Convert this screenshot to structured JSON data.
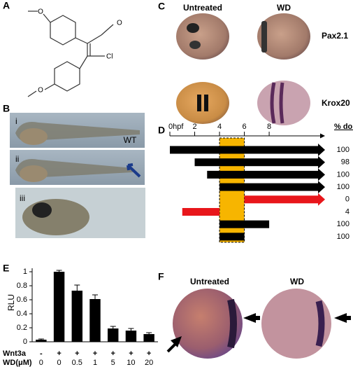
{
  "panels": {
    "A": {
      "label": "A",
      "atoms": [
        "O",
        "O",
        "Cl",
        "O"
      ]
    },
    "B": {
      "label": "B",
      "rows": [
        "i",
        "ii",
        "iii"
      ],
      "wt": "WT"
    },
    "C": {
      "label": "C",
      "columns": [
        "Untreated",
        "WD"
      ],
      "rows": [
        "Pax2.1",
        "Krox20"
      ]
    },
    "D": {
      "label": "D"
    },
    "E": {
      "label": "E"
    },
    "F": {
      "label": "F",
      "columns": [
        "Untreated",
        "WD"
      ]
    }
  },
  "timeline": {
    "xlim": [
      0,
      12.5
    ],
    "xticks": [
      {
        "value": 0,
        "label": "0hpf"
      },
      2,
      4,
      6,
      8
    ],
    "header": "% dors",
    "highlight": [
      4,
      6
    ],
    "highlight_color": "#f7b500",
    "rows": [
      {
        "start": 0,
        "end": 12.5,
        "arrow": true,
        "color": "#000000",
        "value": 100
      },
      {
        "start": 2,
        "end": 12.5,
        "arrow": true,
        "color": "#000000",
        "value": 98
      },
      {
        "start": 3,
        "end": 12.5,
        "arrow": true,
        "color": "#000000",
        "value": 100
      },
      {
        "start": 4,
        "end": 12.5,
        "arrow": true,
        "color": "#000000",
        "value": 100
      },
      {
        "start": 6,
        "end": 12.5,
        "arrow": true,
        "color": "#e8161b",
        "value": 0
      },
      {
        "start": 1,
        "end": 4,
        "arrow": false,
        "color": "#e8161b",
        "value": 4
      },
      {
        "start": 4,
        "end": 8,
        "arrow": false,
        "color": "#000000",
        "value": 100
      },
      {
        "start": 4,
        "end": 6,
        "arrow": false,
        "color": "#000000",
        "value": 100
      }
    ]
  },
  "chart_data": {
    "type": "bar",
    "y_label": "RLU",
    "category_rows": [
      {
        "label": "Wnt3a",
        "values": [
          "-",
          "+",
          "+",
          "+",
          "+",
          "+",
          "+"
        ]
      },
      {
        "label": "WD(μM)",
        "values": [
          "0",
          "0",
          "0.5",
          "1",
          "5",
          "10",
          "20"
        ]
      }
    ],
    "values": [
      0.03,
      1.0,
      0.73,
      0.61,
      0.19,
      0.16,
      0.11
    ],
    "errors": [
      0.01,
      0.02,
      0.08,
      0.06,
      0.03,
      0.03,
      0.02
    ],
    "color": "#000000",
    "ylim": [
      0,
      1.05
    ],
    "yticks": [
      0,
      0.2,
      0.4,
      0.6,
      0.8,
      1
    ]
  }
}
